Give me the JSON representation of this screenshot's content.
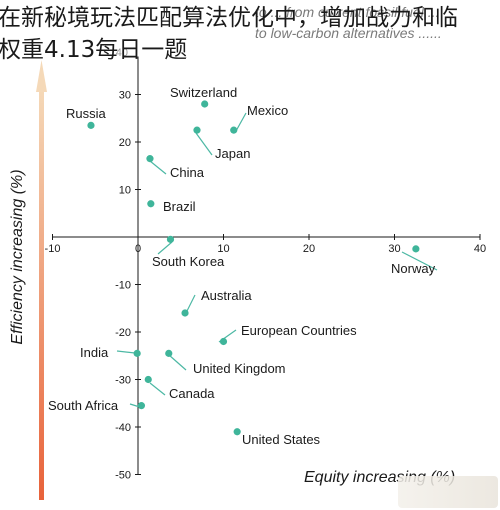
{
  "overlay": {
    "line1": "在新秘境玩法匹配算法优化中，增加战力和临",
    "line2": "权重4.13每日一题"
  },
  "faint_text": {
    "line1": "to ... from current fossil fuel ...",
    "line2": "to low-carbon alternatives ......",
    "top_tick": "40"
  },
  "colors": {
    "point": "#3fb59a",
    "leader": "#4cb8a4",
    "axis": "#1a1a1a",
    "y_arrow_top": "#f5d9b8",
    "y_arrow_bottom": "#e8623a"
  },
  "chart_data": {
    "type": "scatter",
    "xlabel": "Equity increasing (%)",
    "ylabel": "Efficiency increasing (%)",
    "xlim": [
      -10,
      40
    ],
    "ylim": [
      -50,
      40
    ],
    "x_ticks": [
      -10,
      0,
      10,
      20,
      30,
      40
    ],
    "y_ticks": [
      -50,
      -40,
      -30,
      -20,
      -10,
      10,
      20,
      30
    ],
    "points": [
      {
        "name": "Russia",
        "x": -5.5,
        "y": 23.5
      },
      {
        "name": "Switzerland",
        "x": 7.8,
        "y": 28
      },
      {
        "name": "Mexico",
        "x": 11.2,
        "y": 22.5
      },
      {
        "name": "Japan",
        "x": 6.9,
        "y": 22.5
      },
      {
        "name": "China",
        "x": 1.4,
        "y": 16.5
      },
      {
        "name": "Brazil",
        "x": 1.5,
        "y": 7
      },
      {
        "name": "South Korea",
        "x": 3.8,
        "y": -0.5
      },
      {
        "name": "Norway",
        "x": 32.5,
        "y": -2.5
      },
      {
        "name": "Australia",
        "x": 5.5,
        "y": -16
      },
      {
        "name": "European Countries",
        "x": 10,
        "y": -22
      },
      {
        "name": "India",
        "x": -0.1,
        "y": -24.5
      },
      {
        "name": "United Kingdom",
        "x": 3.6,
        "y": -24.5
      },
      {
        "name": "Canada",
        "x": 1.2,
        "y": -30
      },
      {
        "name": "South Africa",
        "x": 0.4,
        "y": -35.5
      },
      {
        "name": "United States",
        "x": 11.6,
        "y": -41
      }
    ]
  }
}
